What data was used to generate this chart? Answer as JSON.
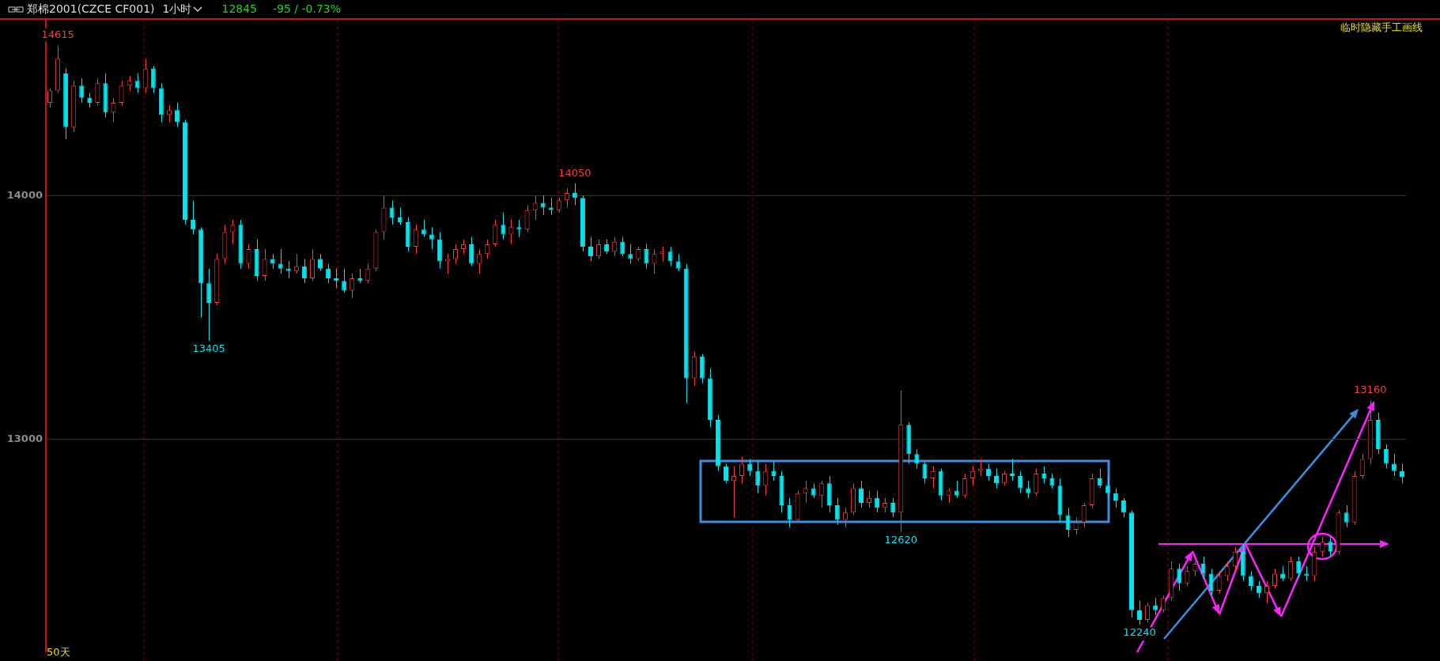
{
  "chart_data": {
    "type": "candlestick",
    "title": "郑棉2001(CZCE CF001)",
    "subtitle": "1小时",
    "categories": [
      null,
      null,
      null,
      null,
      null,
      null,
      null,
      null,
      null,
      null,
      null,
      null,
      null,
      null,
      null,
      null,
      null,
      null,
      null,
      null,
      null,
      null,
      null,
      null,
      null,
      null,
      null,
      null,
      null,
      null,
      null,
      null,
      null,
      null,
      null,
      null,
      null,
      null,
      null,
      null,
      null,
      null,
      null,
      null,
      null,
      null,
      null,
      null,
      null,
      null,
      null,
      null,
      null,
      null,
      null,
      null,
      null,
      null,
      null,
      null,
      null,
      null,
      null,
      null,
      null,
      null,
      null,
      null,
      null,
      null,
      null,
      null,
      null,
      null,
      null,
      null,
      null,
      null,
      null,
      null,
      null,
      null,
      null,
      null,
      null,
      null,
      null,
      null,
      null,
      null,
      null,
      null,
      null,
      null,
      null,
      null,
      null,
      null,
      null,
      null,
      null,
      null,
      null,
      null,
      null,
      null,
      null,
      null,
      null,
      null,
      null,
      null,
      null,
      null,
      null,
      null,
      null,
      null,
      null,
      null,
      null,
      null,
      null,
      null,
      null,
      null,
      null,
      null,
      null,
      null,
      null,
      null,
      null,
      null,
      null,
      null,
      null,
      null,
      null,
      null,
      null,
      null,
      null,
      null,
      null,
      null,
      null,
      null,
      null,
      null,
      null,
      null,
      null,
      null,
      null,
      null,
      null,
      null,
      null,
      null,
      null,
      null,
      null,
      null,
      null,
      null,
      null,
      null,
      null,
      null,
      null
    ],
    "ohlc": [
      [
        14380,
        14440,
        14360,
        14430
      ],
      [
        14430,
        14615,
        14420,
        14560
      ],
      [
        14500,
        14520,
        14230,
        14280
      ],
      [
        14280,
        14470,
        14260,
        14450
      ],
      [
        14450,
        14480,
        14380,
        14400
      ],
      [
        14400,
        14420,
        14360,
        14380
      ],
      [
        14380,
        14480,
        14370,
        14460
      ],
      [
        14460,
        14500,
        14320,
        14340
      ],
      [
        14340,
        14400,
        14300,
        14380
      ],
      [
        14380,
        14470,
        14370,
        14450
      ],
      [
        14450,
        14490,
        14430,
        14470
      ],
      [
        14470,
        14500,
        14420,
        14440
      ],
      [
        14440,
        14560,
        14420,
        14520
      ],
      [
        14520,
        14530,
        14420,
        14440
      ],
      [
        14440,
        14460,
        14300,
        14330
      ],
      [
        14330,
        14370,
        14300,
        14350
      ],
      [
        14350,
        14380,
        14280,
        14300
      ],
      [
        14300,
        14310,
        13880,
        13900
      ],
      [
        13900,
        13980,
        13840,
        13860
      ],
      [
        13860,
        13870,
        13500,
        13640
      ],
      [
        13640,
        13700,
        13405,
        13560
      ],
      [
        13560,
        13760,
        13550,
        13740
      ],
      [
        13740,
        13880,
        13720,
        13850
      ],
      [
        13850,
        13900,
        13800,
        13880
      ],
      [
        13880,
        13900,
        13700,
        13720
      ],
      [
        13720,
        13800,
        13700,
        13780
      ],
      [
        13780,
        13820,
        13650,
        13670
      ],
      [
        13670,
        13780,
        13650,
        13740
      ],
      [
        13740,
        13760,
        13700,
        13720
      ],
      [
        13720,
        13780,
        13680,
        13700
      ],
      [
        13700,
        13730,
        13660,
        13690
      ],
      [
        13690,
        13760,
        13680,
        13710
      ],
      [
        13710,
        13740,
        13640,
        13660
      ],
      [
        13660,
        13780,
        13650,
        13740
      ],
      [
        13740,
        13760,
        13690,
        13700
      ],
      [
        13700,
        13720,
        13640,
        13660
      ],
      [
        13660,
        13700,
        13620,
        13650
      ],
      [
        13650,
        13700,
        13600,
        13610
      ],
      [
        13610,
        13680,
        13580,
        13660
      ],
      [
        13660,
        13700,
        13640,
        13650
      ],
      [
        13650,
        13720,
        13640,
        13700
      ],
      [
        13700,
        13860,
        13690,
        13850
      ],
      [
        13850,
        14000,
        13820,
        13950
      ],
      [
        13950,
        13980,
        13880,
        13910
      ],
      [
        13910,
        13950,
        13880,
        13890
      ],
      [
        13890,
        13910,
        13770,
        13790
      ],
      [
        13790,
        13880,
        13760,
        13860
      ],
      [
        13860,
        13900,
        13830,
        13840
      ],
      [
        13840,
        13870,
        13780,
        13820
      ],
      [
        13820,
        13850,
        13700,
        13730
      ],
      [
        13730,
        13760,
        13680,
        13740
      ],
      [
        13740,
        13800,
        13720,
        13780
      ],
      [
        13780,
        13820,
        13760,
        13800
      ],
      [
        13800,
        13830,
        13710,
        13720
      ],
      [
        13720,
        13780,
        13680,
        13760
      ],
      [
        13760,
        13820,
        13740,
        13800
      ],
      [
        13800,
        13900,
        13790,
        13880
      ],
      [
        13880,
        13930,
        13820,
        13840
      ],
      [
        13840,
        13900,
        13800,
        13870
      ],
      [
        13870,
        13900,
        13830,
        13860
      ],
      [
        13860,
        13960,
        13850,
        13940
      ],
      [
        13940,
        14000,
        13900,
        13970
      ],
      [
        13970,
        14000,
        13920,
        13950
      ],
      [
        13950,
        13990,
        13920,
        13940
      ],
      [
        13940,
        13990,
        13930,
        13980
      ],
      [
        13980,
        14030,
        13950,
        14010
      ],
      [
        14010,
        14050,
        13960,
        13990
      ],
      [
        13990,
        14000,
        13770,
        13790
      ],
      [
        13790,
        13830,
        13730,
        13750
      ],
      [
        13750,
        13820,
        13740,
        13800
      ],
      [
        13800,
        13820,
        13760,
        13770
      ],
      [
        13770,
        13830,
        13750,
        13810
      ],
      [
        13810,
        13830,
        13750,
        13760
      ],
      [
        13760,
        13800,
        13720,
        13740
      ],
      [
        13740,
        13790,
        13730,
        13780
      ],
      [
        13780,
        13800,
        13700,
        13720
      ],
      [
        13720,
        13780,
        13680,
        13760
      ],
      [
        13760,
        13790,
        13730,
        13770
      ],
      [
        13770,
        13790,
        13710,
        13730
      ],
      [
        13730,
        13760,
        13690,
        13700
      ],
      [
        13700,
        13720,
        13150,
        13250
      ],
      [
        13250,
        13360,
        13220,
        13340
      ],
      [
        13340,
        13350,
        13230,
        13250
      ],
      [
        13250,
        13290,
        13050,
        13080
      ],
      [
        13080,
        13100,
        12870,
        12890
      ],
      [
        12890,
        12900,
        12820,
        12830
      ],
      [
        12830,
        12890,
        12680,
        12850
      ],
      [
        12850,
        12930,
        12820,
        12900
      ],
      [
        12900,
        12920,
        12850,
        12870
      ],
      [
        12870,
        12910,
        12780,
        12810
      ],
      [
        12810,
        12900,
        12770,
        12870
      ],
      [
        12870,
        12910,
        12830,
        12850
      ],
      [
        12850,
        12870,
        12700,
        12730
      ],
      [
        12730,
        12760,
        12640,
        12670
      ],
      [
        12670,
        12790,
        12660,
        12780
      ],
      [
        12780,
        12830,
        12740,
        12800
      ],
      [
        12800,
        12820,
        12760,
        12770
      ],
      [
        12770,
        12830,
        12720,
        12820
      ],
      [
        12820,
        12850,
        12700,
        12730
      ],
      [
        12730,
        12760,
        12650,
        12670
      ],
      [
        12670,
        12720,
        12640,
        12700
      ],
      [
        12700,
        12820,
        12690,
        12800
      ],
      [
        12800,
        12830,
        12720,
        12740
      ],
      [
        12740,
        12790,
        12720,
        12760
      ],
      [
        12760,
        12790,
        12700,
        12720
      ],
      [
        12720,
        12760,
        12700,
        12740
      ],
      [
        12740,
        12760,
        12680,
        12700
      ],
      [
        12700,
        13200,
        12620,
        13060
      ],
      [
        13060,
        13070,
        12900,
        12940
      ],
      [
        12940,
        12960,
        12880,
        12900
      ],
      [
        12900,
        12910,
        12820,
        12840
      ],
      [
        12840,
        12890,
        12800,
        12870
      ],
      [
        12870,
        12880,
        12750,
        12770
      ],
      [
        12770,
        12800,
        12740,
        12790
      ],
      [
        12790,
        12830,
        12760,
        12770
      ],
      [
        12770,
        12860,
        12760,
        12840
      ],
      [
        12840,
        12890,
        12810,
        12870
      ],
      [
        12870,
        12920,
        12850,
        12880
      ],
      [
        12880,
        12900,
        12830,
        12850
      ],
      [
        12850,
        12880,
        12800,
        12820
      ],
      [
        12820,
        12870,
        12810,
        12860
      ],
      [
        12860,
        12920,
        12830,
        12850
      ],
      [
        12850,
        12870,
        12780,
        12800
      ],
      [
        12800,
        12830,
        12760,
        12780
      ],
      [
        12780,
        12880,
        12770,
        12860
      ],
      [
        12860,
        12890,
        12820,
        12840
      ],
      [
        12840,
        12860,
        12800,
        12810
      ],
      [
        12810,
        12840,
        12660,
        12690
      ],
      [
        12690,
        12720,
        12600,
        12630
      ],
      [
        12630,
        12680,
        12610,
        12660
      ],
      [
        12660,
        12740,
        12640,
        12730
      ],
      [
        12730,
        12860,
        12720,
        12840
      ],
      [
        12840,
        12880,
        12800,
        12810
      ],
      [
        12810,
        12850,
        12760,
        12780
      ],
      [
        12780,
        12800,
        12720,
        12750
      ],
      [
        12750,
        12760,
        12680,
        12700
      ],
      [
        12700,
        12710,
        12270,
        12300
      ],
      [
        12300,
        12340,
        12240,
        12260
      ],
      [
        12260,
        12330,
        12250,
        12320
      ],
      [
        12320,
        12350,
        12280,
        12300
      ],
      [
        12300,
        12360,
        12290,
        12350
      ],
      [
        12350,
        12500,
        12340,
        12470
      ],
      [
        12470,
        12490,
        12380,
        12410
      ],
      [
        12410,
        12480,
        12400,
        12460
      ],
      [
        12460,
        12500,
        12440,
        12490
      ],
      [
        12490,
        12520,
        12430,
        12450
      ],
      [
        12450,
        12470,
        12360,
        12380
      ],
      [
        12380,
        12460,
        12370,
        12440
      ],
      [
        12440,
        12500,
        12420,
        12480
      ],
      [
        12480,
        12560,
        12460,
        12540
      ],
      [
        12540,
        12570,
        12420,
        12440
      ],
      [
        12440,
        12460,
        12380,
        12400
      ],
      [
        12400,
        12420,
        12350,
        12370
      ],
      [
        12370,
        12420,
        12330,
        12400
      ],
      [
        12400,
        12470,
        12390,
        12450
      ],
      [
        12450,
        12480,
        12420,
        12430
      ],
      [
        12430,
        12520,
        12420,
        12500
      ],
      [
        12500,
        12520,
        12430,
        12450
      ],
      [
        12450,
        12480,
        12420,
        12440
      ],
      [
        12440,
        12560,
        12420,
        12540
      ],
      [
        12540,
        12600,
        12520,
        12580
      ],
      [
        12580,
        12600,
        12520,
        12540
      ],
      [
        12540,
        12710,
        12530,
        12700
      ],
      [
        12700,
        12730,
        12640,
        12660
      ],
      [
        12660,
        12870,
        12650,
        12850
      ],
      [
        12850,
        12940,
        12840,
        12920
      ],
      [
        12920,
        13160,
        12900,
        13080
      ],
      [
        13080,
        13110,
        12940,
        12960
      ],
      [
        12960,
        12980,
        12880,
        12900
      ],
      [
        12900,
        12940,
        12850,
        12870
      ],
      [
        12870,
        12900,
        12820,
        12845
      ]
    ],
    "colors": [
      "#ff3b3b",
      "#ff3b3b",
      "#00e5ee",
      "#ff3b3b",
      "#00e5ee",
      "#00e5ee",
      "#ff3b3b",
      "#00e5ee",
      "#ff3b3b",
      "#ff3b3b",
      "#ff3b3b",
      "#00e5ee",
      "#ff3b3b",
      "#00e5ee",
      "#00e5ee",
      "#ff3b3b",
      "#00e5ee",
      "#00e5ee",
      "#00e5ee",
      "#00e5ee",
      "#00e5ee",
      "#ff3b3b",
      "#ff3b3b",
      "#ff3b3b",
      "#00e5ee",
      "#ff3b3b",
      "#00e5ee",
      "#ff3b3b",
      "#00e5ee",
      "#00e5ee",
      "#00e5ee",
      "#ff3b3b",
      "#00e5ee",
      "#ff3b3b",
      "#00e5ee",
      "#00e5ee",
      "#00e5ee",
      "#00e5ee",
      "#ff3b3b",
      "#00e5ee",
      "#ff3b3b",
      "#ff3b3b",
      "#ff3b3b",
      "#00e5ee",
      "#00e5ee",
      "#00e5ee",
      "#ff3b3b",
      "#00e5ee",
      "#00e5ee",
      "#00e5ee",
      "#ff3b3b",
      "#ff3b3b",
      "#ff3b3b",
      "#00e5ee",
      "#ff3b3b",
      "#ff3b3b",
      "#ff3b3b",
      "#00e5ee",
      "#ff3b3b",
      "#00e5ee",
      "#ff3b3b",
      "#ff3b3b",
      "#00e5ee",
      "#00e5ee",
      "#ff3b3b",
      "#ff3b3b",
      "#00e5ee",
      "#00e5ee",
      "#00e5ee",
      "#ff3b3b",
      "#00e5ee",
      "#ff3b3b",
      "#00e5ee",
      "#00e5ee",
      "#ff3b3b",
      "#00e5ee",
      "#ff3b3b",
      "#ff3b3b",
      "#00e5ee",
      "#00e5ee",
      "#00e5ee",
      "#ff3b3b",
      "#00e5ee",
      "#00e5ee",
      "#00e5ee",
      "#00e5ee",
      "#ff3b3b",
      "#ff3b3b",
      "#00e5ee",
      "#00e5ee",
      "#ff3b3b",
      "#00e5ee",
      "#00e5ee",
      "#00e5ee",
      "#ff3b3b",
      "#ff3b3b",
      "#00e5ee",
      "#ff3b3b",
      "#00e5ee",
      "#00e5ee",
      "#ff3b3b",
      "#ff3b3b",
      "#00e5ee",
      "#ff3b3b",
      "#00e5ee",
      "#ff3b3b",
      "#00e5ee",
      "#ff3b3b",
      "#00e5ee",
      "#00e5ee",
      "#00e5ee",
      "#ff3b3b",
      "#00e5ee",
      "#ff3b3b",
      "#00e5ee",
      "#ff3b3b",
      "#ff3b3b",
      "#ff3b3b",
      "#00e5ee",
      "#00e5ee",
      "#ff3b3b",
      "#00e5ee",
      "#00e5ee",
      "#00e5ee",
      "#ff3b3b",
      "#00e5ee",
      "#00e5ee",
      "#00e5ee",
      "#00e5ee",
      "#ff3b3b",
      "#ff3b3b",
      "#ff3b3b",
      "#00e5ee",
      "#00e5ee",
      "#00e5ee",
      "#00e5ee",
      "#00e5ee",
      "#00e5ee",
      "#ff3b3b",
      "#00e5ee",
      "#ff3b3b",
      "#ff3b3b",
      "#00e5ee",
      "#ff3b3b",
      "#ff3b3b",
      "#00e5ee",
      "#00e5ee",
      "#ff3b3b",
      "#ff3b3b",
      "#ff3b3b",
      "#00e5ee",
      "#00e5ee",
      "#00e5ee",
      "#ff3b3b",
      "#ff3b3b",
      "#00e5ee",
      "#ff3b3b",
      "#00e5ee",
      "#00e5ee",
      "#ff3b3b",
      "#ff3b3b",
      "#00e5ee",
      "#ff3b3b",
      "#00e5ee",
      "#ff3b3b",
      "#ff3b3b",
      "#ff3b3b",
      "#00e5ee",
      "#00e5ee",
      "#00e5ee",
      "#00e5ee"
    ],
    "ylim": [
      12130,
      14720
    ],
    "yticks": [
      13000,
      14000
    ],
    "grid": "y",
    "legend": false,
    "annotations": [
      "12845",
      "-95 / -0.73%",
      "临时隐藏手工画线",
      "50天",
      {
        "text": "14615",
        "y": 14615
      },
      {
        "text": "13405",
        "y": 13405
      },
      {
        "text": "14050",
        "y": 14050
      },
      {
        "text": "12620",
        "y": 12620
      },
      {
        "text": "12240",
        "y": 12240
      },
      {
        "text": "13160",
        "y": 13160
      }
    ]
  }
}
